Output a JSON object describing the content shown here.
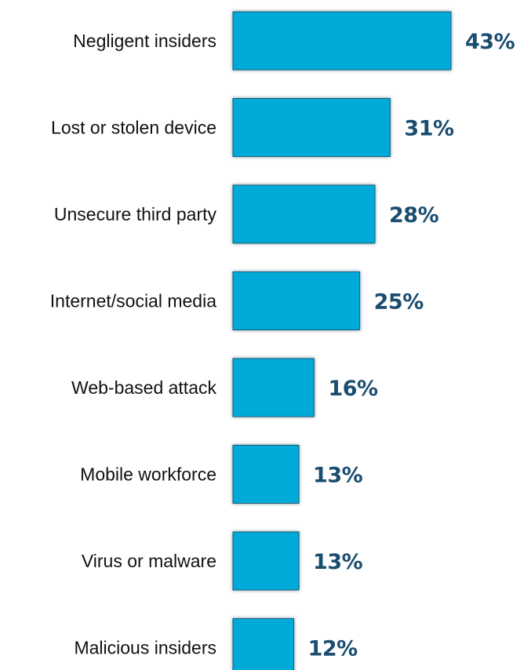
{
  "chart_data": {
    "type": "bar",
    "orientation": "horizontal",
    "categories": [
      "Negligent insiders",
      "Lost or stolen device",
      "Unsecure third party",
      "Internet/social media",
      "Web-based attack",
      "Mobile workforce",
      "Virus or malware",
      "Malicious insiders"
    ],
    "values": [
      43,
      31,
      28,
      25,
      16,
      13,
      13,
      12
    ],
    "value_labels": [
      "43%",
      "31%",
      "28%",
      "25%",
      "16%",
      "13%",
      "13%",
      "12%"
    ],
    "title": "",
    "xlabel": "",
    "ylabel": "",
    "xlim": [
      0,
      43
    ],
    "grid": false,
    "legend": "none",
    "colors": {
      "bar": "#03aad8",
      "bar_edge": "#1f5f78",
      "value_text": "#1a4d6f",
      "label_text": "#111111"
    }
  }
}
